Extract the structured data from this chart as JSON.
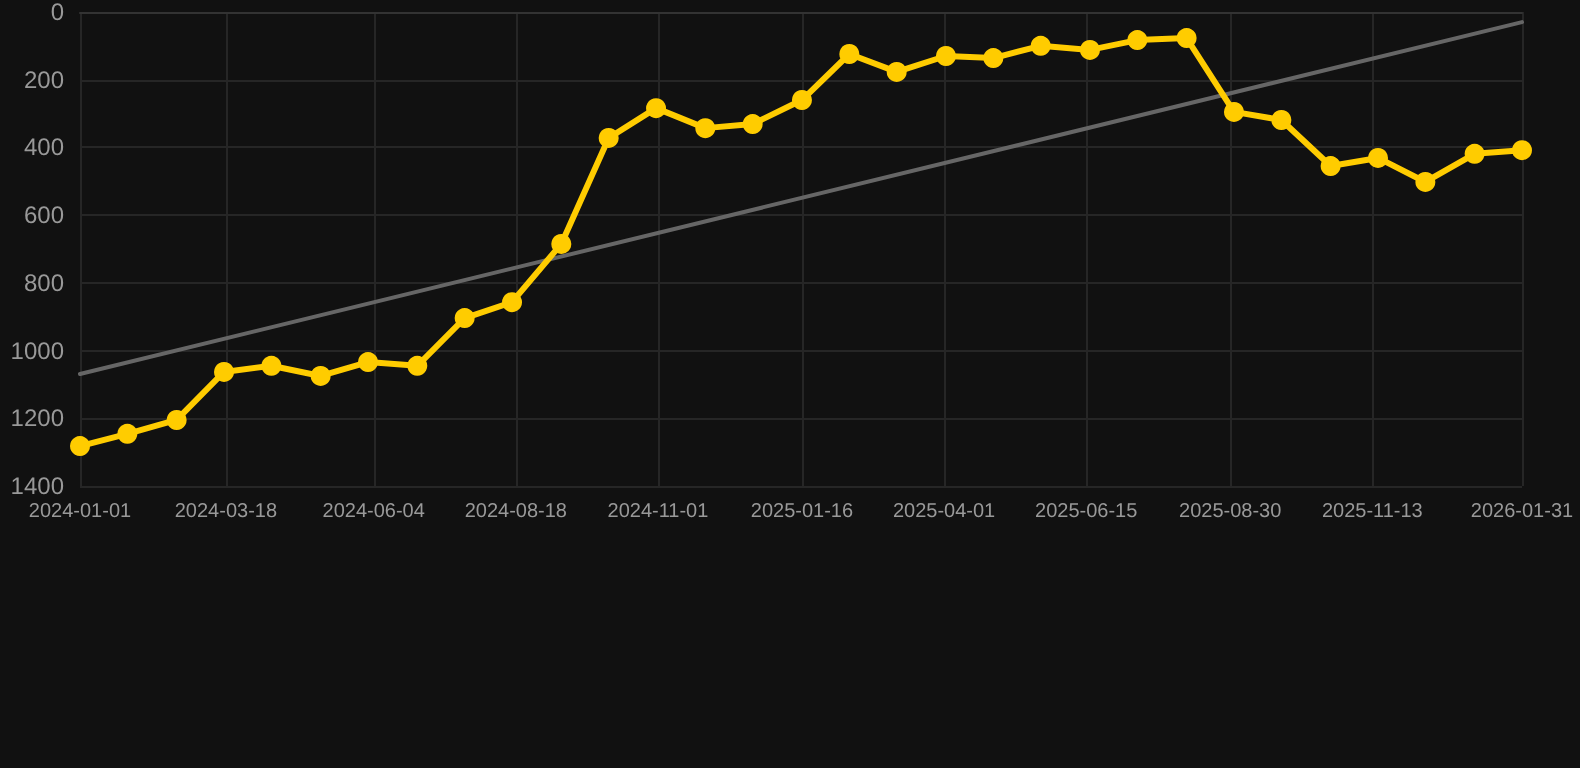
{
  "chart_data": {
    "type": "line",
    "x": [
      "2024-01-01",
      "2024-01-26",
      "2024-02-21",
      "2024-03-17",
      "2024-04-11",
      "2024-05-07",
      "2024-06-01",
      "2024-06-27",
      "2024-07-22",
      "2024-08-16",
      "2024-09-11",
      "2024-10-06",
      "2024-10-31",
      "2024-11-26",
      "2024-12-21",
      "2025-01-16",
      "2025-02-10",
      "2025-03-07",
      "2025-04-02",
      "2025-04-27",
      "2025-05-22",
      "2025-06-17",
      "2025-07-12",
      "2025-08-07",
      "2025-09-01",
      "2025-09-26",
      "2025-10-22",
      "2025-11-16",
      "2025-12-11",
      "2026-01-06",
      "2026-01-31"
    ],
    "series": [
      {
        "color": "#ffcc00",
        "marker": "circle",
        "values": [
          1282,
          1246,
          1205,
          1063,
          1045,
          1075,
          1034,
          1045,
          904,
          857,
          685,
          372,
          284,
          343,
          331,
          260,
          124,
          177,
          130,
          136,
          100,
          112,
          83,
          77,
          295,
          319,
          455,
          431,
          502,
          419,
          408
        ]
      },
      {
        "type": "line",
        "color": "#666666",
        "marker": "none",
        "x": [
          "2024-01-01",
          "2026-01-31"
        ],
        "values": [
          1069,
          30
        ]
      }
    ],
    "xlim": [
      "2024-01-01",
      "2026-01-31"
    ],
    "xticks": [
      "2024-01-01",
      "2024-03-18",
      "2024-06-04",
      "2024-08-18",
      "2024-11-01",
      "2025-01-16",
      "2025-04-01",
      "2025-06-15",
      "2025-08-30",
      "2025-11-13",
      "2026-01-31"
    ],
    "ylim": [
      1400,
      0
    ],
    "yticks": [
      0,
      200,
      400,
      600,
      800,
      1000,
      1200,
      1400
    ],
    "grid": true
  }
}
